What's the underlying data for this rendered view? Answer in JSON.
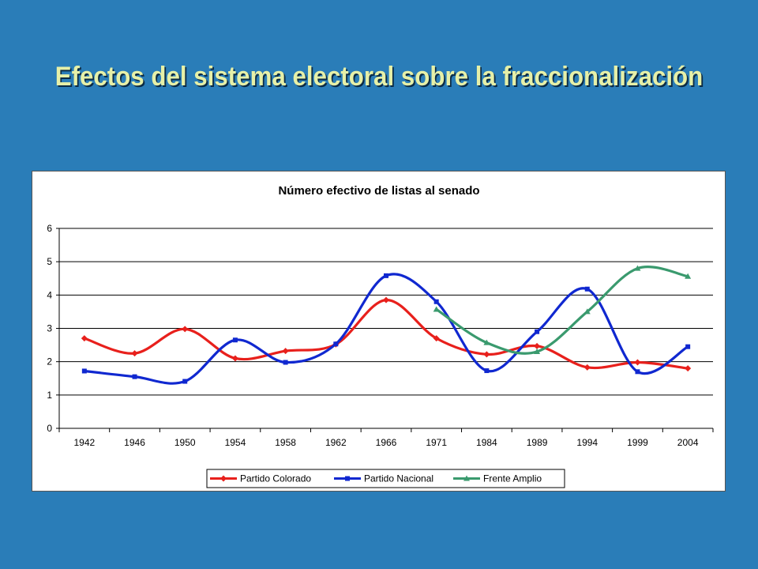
{
  "slide": {
    "title": "Efectos del sistema electoral sobre la fraccionalización"
  },
  "chart_data": {
    "type": "line",
    "title": "Número efectivo de listas al senado",
    "categories": [
      "1942",
      "1946",
      "1950",
      "1954",
      "1958",
      "1962",
      "1966",
      "1971",
      "1984",
      "1989",
      "1994",
      "1999",
      "2004"
    ],
    "y_ticks": [
      "0",
      "1",
      "2",
      "3",
      "4",
      "5",
      "6"
    ],
    "ylim": [
      0,
      6
    ],
    "grid": "horizontal",
    "legend_position": "bottom",
    "series": [
      {
        "name": "Partido Colorado",
        "color": "#e8201c",
        "marker": "diamond",
        "values": [
          2.7,
          2.25,
          2.98,
          2.1,
          2.32,
          2.52,
          3.85,
          2.7,
          2.22,
          2.47,
          1.83,
          1.98,
          1.8
        ]
      },
      {
        "name": "Partido Nacional",
        "color": "#1028d0",
        "marker": "square",
        "values": [
          1.72,
          1.55,
          1.41,
          2.65,
          1.98,
          2.53,
          4.58,
          3.8,
          1.73,
          2.9,
          4.18,
          1.7,
          2.45
        ]
      },
      {
        "name": "Frente Amplio",
        "color": "#3a9a6e",
        "marker": "triangle",
        "values": [
          null,
          null,
          null,
          null,
          null,
          null,
          null,
          3.57,
          2.57,
          2.3,
          3.5,
          4.8,
          4.56
        ]
      }
    ]
  }
}
